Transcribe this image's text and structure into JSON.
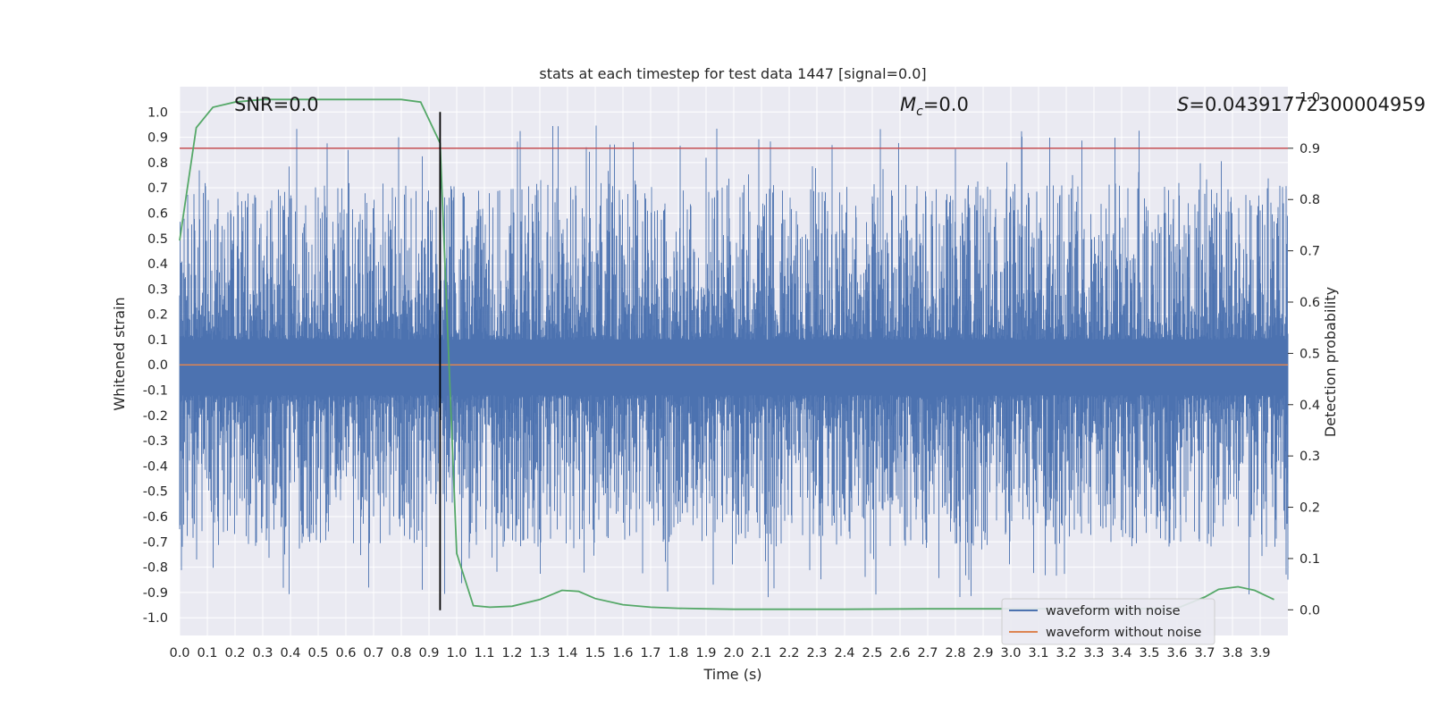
{
  "chart_data": {
    "type": "line",
    "title": "stats at each timestep for test data 1447 [signal=0.0]",
    "xlabel": "Time (s)",
    "ylabel_left": "Whitened strain",
    "ylabel_right": "Detection probability",
    "xlim": [
      0.0,
      4.0
    ],
    "ylim_left": [
      -1.07,
      1.1
    ],
    "ylim_right": [
      -0.05,
      1.02
    ],
    "x_ticks": [
      "0.0",
      "0.1",
      "0.2",
      "0.3",
      "0.4",
      "0.5",
      "0.6",
      "0.7",
      "0.8",
      "0.9",
      "1.0",
      "1.1",
      "1.2",
      "1.3",
      "1.4",
      "1.5",
      "1.6",
      "1.7",
      "1.8",
      "1.9",
      "2.0",
      "2.1",
      "2.2",
      "2.3",
      "2.4",
      "2.5",
      "2.6",
      "2.7",
      "2.8",
      "2.9",
      "3.0",
      "3.1",
      "3.2",
      "3.3",
      "3.4",
      "3.5",
      "3.6",
      "3.7",
      "3.8",
      "3.9"
    ],
    "y_ticks_left": [
      "1.0",
      "0.9",
      "0.8",
      "0.7",
      "0.6",
      "0.5",
      "0.4",
      "0.3",
      "0.2",
      "0.1",
      "0.0",
      "-0.1",
      "-0.2",
      "-0.3",
      "-0.4",
      "-0.5",
      "-0.6",
      "-0.7",
      "-0.8",
      "-0.9",
      "-1.0"
    ],
    "y_ticks_right": [
      "1.0",
      "0.9",
      "0.8",
      "0.7",
      "0.6",
      "0.5",
      "0.4",
      "0.3",
      "0.2",
      "0.1",
      "0.0"
    ],
    "annotations": {
      "snr": "SNR=0.0",
      "mc_symbol": "M",
      "mc_subscript": "c",
      "mc_value": "=0.0",
      "s_symbol": "S",
      "s_value": "=0.04391772300004959"
    },
    "threshold": {
      "axis": "right",
      "value": 0.9,
      "color": "#c44e52"
    },
    "marker_time": 0.94,
    "series": [
      {
        "name": "waveform with noise",
        "axis": "left",
        "color": "#4c72b0",
        "amplitude_range": [
          -0.97,
          1.0
        ]
      },
      {
        "name": "waveform without noise",
        "axis": "left",
        "color": "#dd8452",
        "values": "0.0 (flat)"
      },
      {
        "name": "detection probability",
        "axis": "right",
        "color": "#55a868",
        "in_legend": false,
        "x": [
          0.0,
          0.06,
          0.12,
          0.2,
          0.3,
          0.5,
          0.8,
          0.87,
          0.94,
          1.0,
          1.06,
          1.12,
          1.2,
          1.3,
          1.38,
          1.44,
          1.5,
          1.6,
          1.7,
          1.8,
          1.9,
          2.0,
          2.4,
          2.7,
          3.0,
          3.2,
          3.4,
          3.6,
          3.7,
          3.75,
          3.82,
          3.88,
          3.95
        ],
        "y": [
          0.72,
          0.94,
          0.98,
          0.99,
          0.995,
          0.995,
          0.995,
          0.99,
          0.91,
          0.11,
          0.008,
          0.005,
          0.007,
          0.02,
          0.038,
          0.036,
          0.022,
          0.01,
          0.005,
          0.003,
          0.002,
          0.001,
          0.001,
          0.002,
          0.002,
          0.002,
          0.002,
          0.003,
          0.025,
          0.04,
          0.045,
          0.038,
          0.02
        ]
      }
    ],
    "legend": {
      "placement": "lower-right",
      "entries": [
        {
          "label": "waveform with noise",
          "color": "#4c72b0"
        },
        {
          "label": "waveform without noise",
          "color": "#dd8452"
        }
      ]
    },
    "colors": {
      "plot_background": "#eaeaf2",
      "grid": "#ffffff",
      "marker_line": "#000000"
    }
  }
}
